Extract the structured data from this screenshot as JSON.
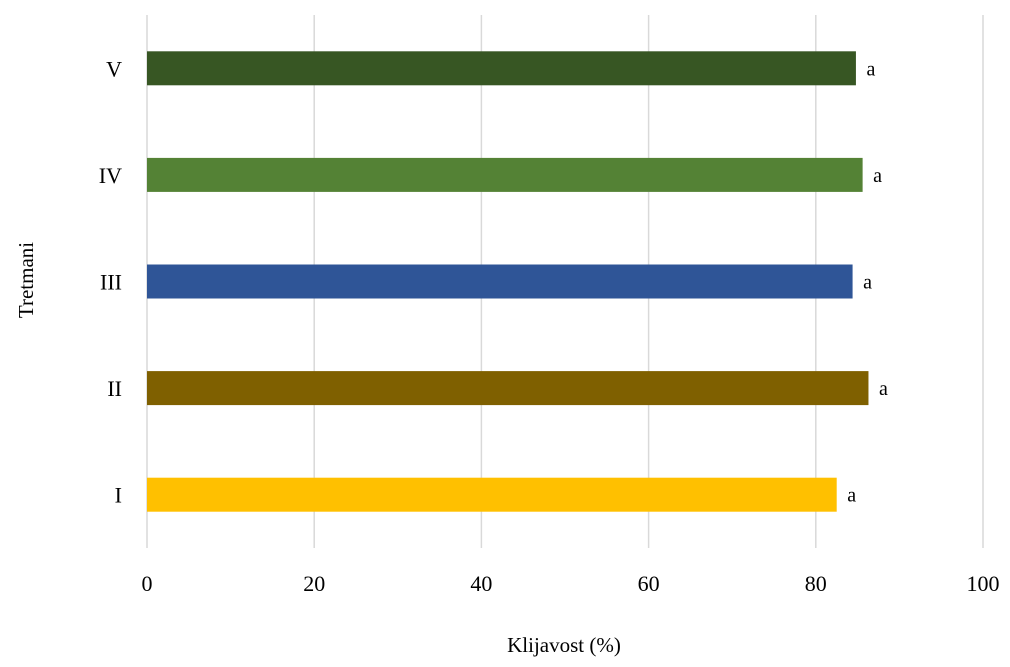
{
  "chart_data": {
    "type": "bar",
    "orientation": "horizontal",
    "categories": [
      "I",
      "II",
      "III",
      "IV",
      "V"
    ],
    "values": [
      82.5,
      86.3,
      84.4,
      85.6,
      84.8
    ],
    "data_labels": [
      "a",
      "a",
      "a",
      "a",
      "a"
    ],
    "colors": [
      "#FFC000",
      "#7F6000",
      "#2F5597",
      "#548235",
      "#375623"
    ],
    "xlabel": "Klijavost (%)",
    "ylabel": "Tretmani",
    "xlim": [
      0,
      100
    ],
    "xticks": [
      0,
      20,
      40,
      60,
      80,
      100
    ],
    "grid": true,
    "grid_color": "#D9D9D9"
  }
}
